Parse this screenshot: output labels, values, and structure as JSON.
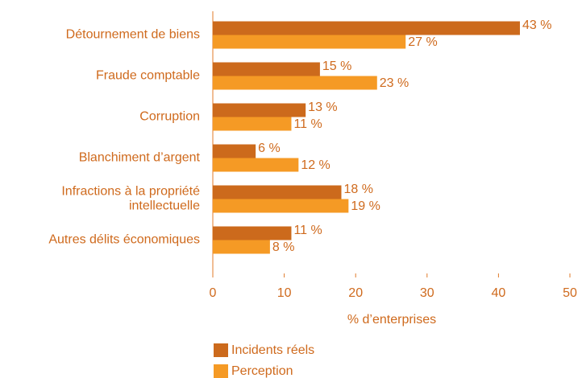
{
  "chart_data": {
    "type": "hbar",
    "categories": [
      "Détournement de biens",
      "Fraude comptable",
      "Corruption",
      "Blanchiment d’argent",
      "Infractions à la propriété\nintellectuelle",
      "Autres délits économiques"
    ],
    "series": [
      {
        "name": "Incidents réels",
        "color": "#cc6a1c",
        "values": [
          43,
          15,
          13,
          6,
          18,
          11
        ],
        "value_labels": [
          "43 %",
          "15 %",
          "13 %",
          "6 %",
          "18 %",
          "11 %"
        ]
      },
      {
        "name": "Perception",
        "color": "#f59a25",
        "values": [
          27,
          23,
          11,
          12,
          19,
          8
        ],
        "value_labels": [
          "27 %",
          "23 %",
          "11 %",
          "12 %",
          "19 %",
          "8 %"
        ]
      }
    ],
    "xlabel": "% d’enterprises",
    "xlim": [
      0,
      50
    ],
    "xticks": [
      0,
      10,
      20,
      30,
      40,
      50
    ],
    "grid": false
  }
}
